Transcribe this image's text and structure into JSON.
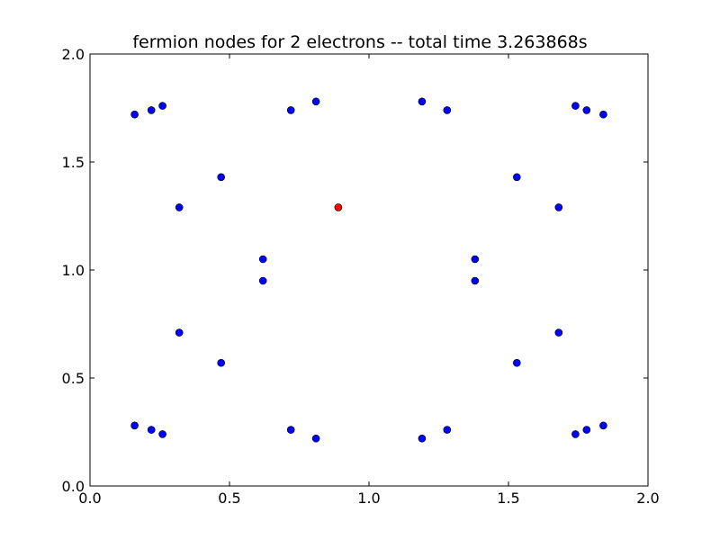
{
  "chart_data": {
    "type": "scatter",
    "title": "fermion nodes for 2 electrons -- total time 3.263868s",
    "xlabel": "",
    "ylabel": "",
    "xlim": [
      0.0,
      2.0
    ],
    "ylim": [
      0.0,
      2.0
    ],
    "xticks": [
      0.0,
      0.5,
      1.0,
      1.5,
      2.0
    ],
    "yticks": [
      0.0,
      0.5,
      1.0,
      1.5,
      2.0
    ],
    "xtick_labels": [
      "0.0",
      "0.5",
      "1.0",
      "1.5",
      "2.0"
    ],
    "ytick_labels": [
      "0.0",
      "0.5",
      "1.0",
      "1.5",
      "2.0"
    ],
    "grid": false,
    "legend": "none",
    "colors": {
      "blue": "#0000ff",
      "red": "#ff0000",
      "edge": "#000000"
    },
    "series": [
      {
        "color": "#0000ff",
        "points": [
          [
            0.16,
            1.72
          ],
          [
            0.22,
            1.74
          ],
          [
            0.26,
            1.76
          ],
          [
            0.72,
            1.74
          ],
          [
            0.81,
            1.78
          ],
          [
            1.19,
            1.78
          ],
          [
            1.28,
            1.74
          ],
          [
            1.74,
            1.76
          ],
          [
            1.78,
            1.74
          ],
          [
            1.84,
            1.72
          ],
          [
            0.47,
            1.43
          ],
          [
            1.53,
            1.43
          ],
          [
            0.32,
            1.29
          ],
          [
            1.68,
            1.29
          ],
          [
            0.62,
            1.05
          ],
          [
            1.38,
            1.05
          ],
          [
            0.62,
            0.95
          ],
          [
            1.38,
            0.95
          ],
          [
            0.32,
            0.71
          ],
          [
            1.68,
            0.71
          ],
          [
            0.47,
            0.57
          ],
          [
            1.53,
            0.57
          ],
          [
            0.16,
            0.28
          ],
          [
            0.22,
            0.26
          ],
          [
            0.26,
            0.24
          ],
          [
            0.72,
            0.26
          ],
          [
            0.81,
            0.22
          ],
          [
            1.19,
            0.22
          ],
          [
            1.28,
            0.26
          ],
          [
            1.74,
            0.24
          ],
          [
            1.78,
            0.26
          ],
          [
            1.84,
            0.28
          ]
        ]
      },
      {
        "color": "#ff0000",
        "points": [
          [
            0.89,
            1.29
          ]
        ]
      }
    ]
  }
}
